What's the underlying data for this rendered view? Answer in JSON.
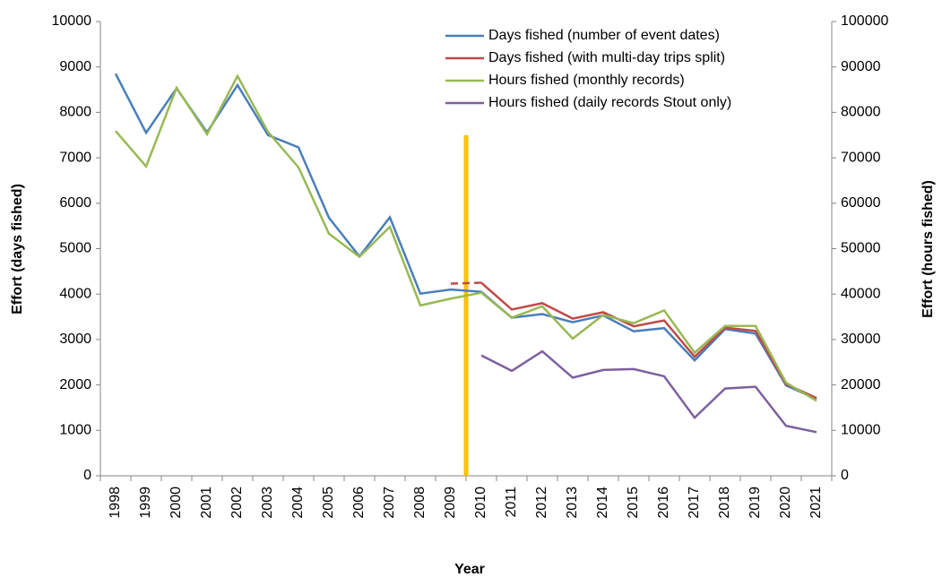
{
  "chart_data": {
    "type": "line",
    "x_label": "Year",
    "y_label": "Effort (days fished)",
    "y2_label": "Effort (hours fished)",
    "categories": [
      "1998",
      "1999",
      "2000",
      "2001",
      "2002",
      "2003",
      "2004",
      "2005",
      "2006",
      "2007",
      "2008",
      "2009",
      "2010",
      "2011",
      "2012",
      "2013",
      "2014",
      "2015",
      "2016",
      "2017",
      "2018",
      "2019",
      "2020",
      "2021"
    ],
    "ylim": [
      0,
      10000
    ],
    "yticks": [
      0,
      1000,
      2000,
      3000,
      4000,
      5000,
      6000,
      7000,
      8000,
      9000,
      10000
    ],
    "y2lim": [
      0,
      100000
    ],
    "y2ticks": [
      0,
      10000,
      20000,
      30000,
      40000,
      50000,
      60000,
      70000,
      80000,
      90000,
      100000
    ],
    "grid": false,
    "legend": "top-right",
    "series": [
      {
        "name": "Days fished (number of event dates)",
        "color": "#4a7ebb",
        "values": [
          8850,
          7550,
          8530,
          7560,
          8600,
          7500,
          7230,
          5680,
          4830,
          5690,
          4010,
          4100,
          4050,
          3480,
          3560,
          3380,
          3530,
          3180,
          3250,
          2540,
          3230,
          3130,
          1990,
          1690
        ]
      },
      {
        "name": "Days fished (with multi-day trips split)",
        "color": "#be4b48",
        "first_segment_dashed": true,
        "values": [
          null,
          null,
          null,
          null,
          null,
          null,
          null,
          null,
          null,
          null,
          null,
          4230,
          4250,
          3660,
          3800,
          3460,
          3600,
          3290,
          3420,
          2620,
          3260,
          3190,
          2020,
          1710
        ]
      },
      {
        "name": "Hours fished (monthly records)",
        "color": "#98b954",
        "axis": "y2",
        "values": [
          75900,
          68100,
          85400,
          75200,
          88000,
          75700,
          67900,
          53300,
          48200,
          54800,
          37500,
          39000,
          40300,
          34800,
          37300,
          30200,
          35400,
          33600,
          36400,
          27100,
          33000,
          33000,
          20500,
          16500
        ]
      },
      {
        "name": "Hours fished (daily records Stout only)",
        "color": "#7d60a0",
        "axis": "y2",
        "values": [
          null,
          null,
          null,
          null,
          null,
          null,
          null,
          null,
          null,
          null,
          null,
          null,
          26500,
          23100,
          27400,
          21600,
          23300,
          23500,
          21900,
          12800,
          19200,
          19600,
          11000,
          9600
        ]
      }
    ],
    "vline": {
      "x": 11.5,
      "ymax": 7500,
      "color": "#ffc000"
    }
  }
}
